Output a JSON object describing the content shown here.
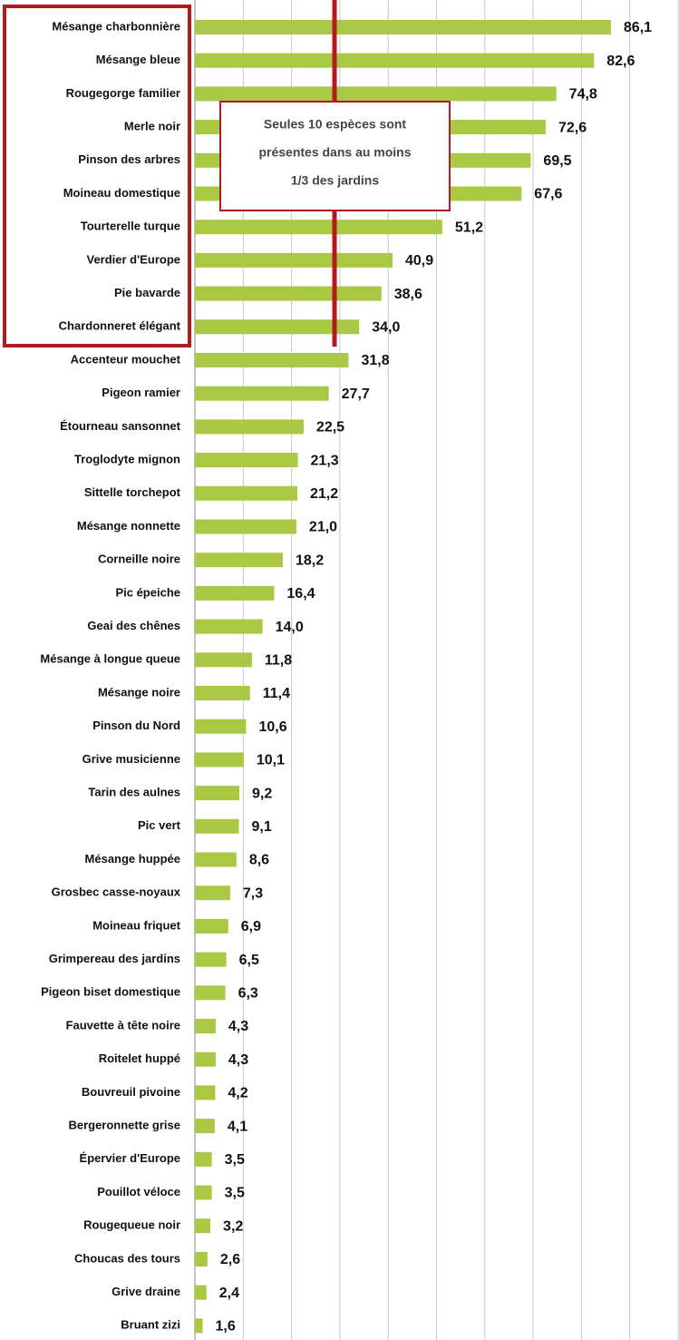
{
  "chart_data": {
    "type": "barh",
    "categories": [
      "Mésange charbonnière",
      "Mésange bleue",
      "Rougegorge familier",
      "Merle noir",
      "Pinson des arbres",
      "Moineau domestique",
      "Tourterelle turque",
      "Verdier d'Europe",
      "Pie bavarde",
      "Chardonneret élégant",
      "Accenteur mouchet",
      "Pigeon ramier",
      "Étourneau sansonnet",
      "Troglodyte mignon",
      "Sittelle torchepot",
      "Mésange nonnette",
      "Corneille noire",
      "Pic épeiche",
      "Geai des chênes",
      "Mésange à longue queue",
      "Mésange noire",
      "Pinson du Nord",
      "Grive musicienne",
      "Tarin des aulnes",
      "Pic vert",
      "Mésange huppée",
      "Grosbec casse-noyaux",
      "Moineau friquet",
      "Grimpereau des jardins",
      "Pigeon biset domestique",
      "Fauvette à tête noire",
      "Roitelet huppé",
      "Bouvreuil pivoine",
      "Bergeronnette grise",
      "Épervier d'Europe",
      "Pouillot véloce",
      "Rougequeue noir",
      "Choucas des tours",
      "Grive draine",
      "Bruant zizi"
    ],
    "values": [
      86.1,
      82.6,
      74.8,
      72.6,
      69.5,
      67.6,
      51.2,
      40.9,
      38.6,
      34.0,
      31.8,
      27.7,
      22.5,
      21.3,
      21.2,
      21.0,
      18.2,
      16.4,
      14.0,
      11.8,
      11.4,
      10.6,
      10.1,
      9.2,
      9.1,
      8.6,
      7.3,
      6.9,
      6.5,
      6.3,
      4.3,
      4.3,
      4.2,
      4.1,
      3.5,
      3.5,
      3.2,
      2.6,
      2.4,
      1.6
    ],
    "value_labels": [
      "86,1",
      "82,6",
      "74,8",
      "72,6",
      "69,5",
      "67,6",
      "51,2",
      "40,9",
      "38,6",
      "34,0",
      "31,8",
      "27,7",
      "22,5",
      "21,3",
      "21,2",
      "21,0",
      "18,2",
      "16,4",
      "14,0",
      "11,8",
      "11,4",
      "10,6",
      "10,1",
      "9,2",
      "9,1",
      "8,6",
      "7,3",
      "6,9",
      "6,5",
      "6,3",
      "4,3",
      "4,3",
      "4,2",
      "4,1",
      "3,5",
      "3,5",
      "3,2",
      "2,6",
      "2,4",
      "1,6"
    ],
    "color": "#a9c843",
    "xlim": [
      0,
      100
    ],
    "xticks": [
      0,
      10,
      20,
      30,
      40,
      50,
      60,
      70,
      80,
      90,
      100
    ],
    "grid": true,
    "annotation": [
      "Seules 10 espèces sont",
      "présentes dans au moins",
      "1/3 des jardins"
    ],
    "highlight_color": "#b01c1c"
  }
}
